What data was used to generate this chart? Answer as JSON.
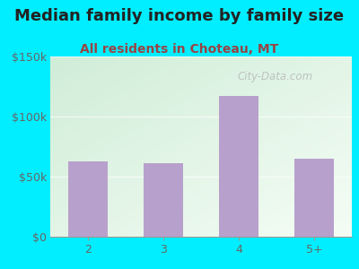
{
  "title": "Median family income by family size",
  "subtitle": "All residents in Choteau, MT",
  "categories": [
    "2",
    "3",
    "4",
    "5+"
  ],
  "values": [
    63000,
    61000,
    117000,
    65000
  ],
  "bar_color": "#b8a0cc",
  "background_outer": "#00eeff",
  "title_color": "#222222",
  "subtitle_color": "#994444",
  "tick_label_color": "#666666",
  "ytick_labels": [
    "$0",
    "$50k",
    "$100k",
    "$150k"
  ],
  "ytick_values": [
    0,
    50000,
    100000,
    150000
  ],
  "ylim": [
    0,
    150000
  ],
  "watermark": "City-Data.com",
  "title_fontsize": 13,
  "subtitle_fontsize": 10,
  "tick_fontsize": 9,
  "gradient_top_left": "#d0edd8",
  "gradient_bottom_right": "#f5fdf5"
}
